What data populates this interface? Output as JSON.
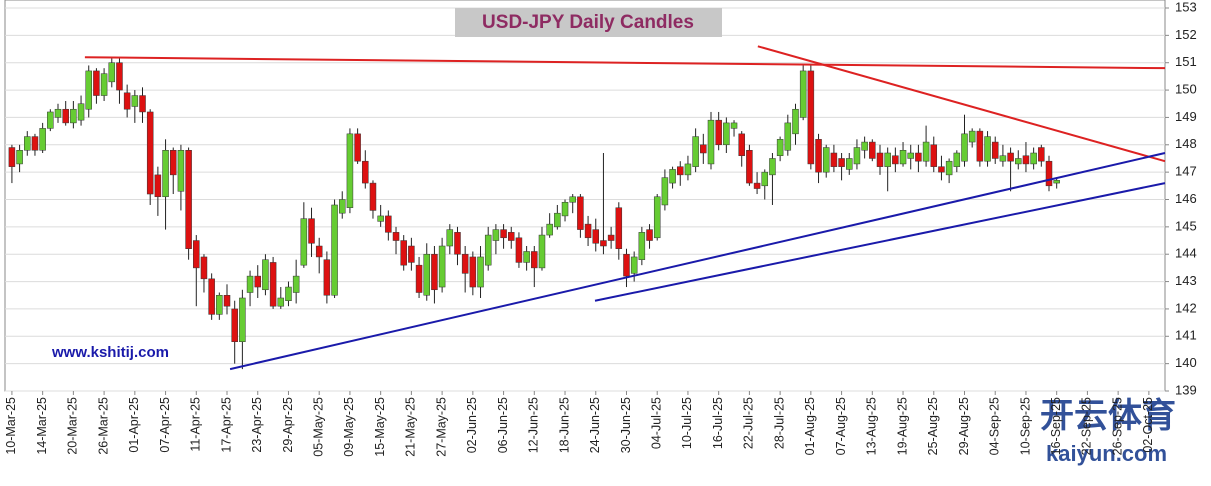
{
  "chart_data": {
    "type": "candlestick",
    "title": "USD-JPY Daily Candles",
    "watermarks": [
      "www.kshitij.com",
      "开云体育",
      "kaiyun.com"
    ],
    "categories": [
      "10-Mar-25",
      null,
      null,
      null,
      "14-Mar-25",
      null,
      null,
      null,
      "20-Mar-25",
      null,
      null,
      null,
      "26-Mar-25",
      null,
      null,
      null,
      "01-Apr-25",
      null,
      null,
      null,
      "07-Apr-25",
      null,
      null,
      null,
      "11-Apr-25",
      null,
      null,
      null,
      "17-Apr-25",
      null,
      null,
      null,
      "23-Apr-25",
      null,
      null,
      null,
      "29-Apr-25",
      null,
      null,
      null,
      "05-May-25",
      null,
      null,
      null,
      "09-May-25",
      null,
      null,
      null,
      "15-May-25",
      null,
      null,
      null,
      "21-May-25",
      null,
      null,
      null,
      "27-May-25",
      null,
      null,
      null,
      "02-Jun-25",
      null,
      null,
      null,
      "06-Jun-25",
      null,
      null,
      null,
      "12-Jun-25",
      null,
      null,
      null,
      "18-Jun-25",
      null,
      null,
      null,
      "24-Jun-25",
      null,
      null,
      null,
      "30-Jun-25",
      null,
      null,
      null,
      "04-Jul-25",
      null,
      null,
      null,
      "10-Jul-25",
      null,
      null,
      null,
      "16-Jul-25",
      null,
      null,
      null,
      "22-Jul-25",
      null,
      null,
      null,
      "28-Jul-25",
      null,
      null,
      null,
      "01-Aug-25",
      null,
      null,
      null,
      "07-Aug-25",
      null,
      null,
      null,
      "13-Aug-25",
      null,
      null,
      null,
      "19-Aug-25",
      null,
      null,
      null,
      "25-Aug-25",
      null,
      null,
      null,
      "29-Aug-25",
      null,
      null,
      null,
      "04-Sep-25",
      null,
      null,
      null,
      "10-Sep-25",
      null,
      null,
      null,
      "16-Sep-25",
      null,
      null,
      null,
      "22-Sep-25",
      null,
      null,
      null,
      "26-Sep-25",
      null,
      null,
      null,
      "02-Oct-25"
    ],
    "candles": {
      "open": [
        147.9,
        147.3,
        147.8,
        148.3,
        147.8,
        148.6,
        149.0,
        149.3,
        148.8,
        148.9,
        149.3,
        150.7,
        149.8,
        150.3,
        151.0,
        149.9,
        149.4,
        149.8,
        149.2,
        146.9,
        146.1,
        147.8,
        146.3,
        147.8,
        144.5,
        143.9,
        143.1,
        141.8,
        142.5,
        142.0,
        140.8,
        142.6,
        143.2,
        142.7,
        143.7,
        142.1,
        142.3,
        142.6,
        143.6,
        145.3,
        144.3,
        143.8,
        142.5,
        145.5,
        145.7,
        148.4,
        147.4,
        146.6,
        145.2,
        145.4,
        144.8,
        144.5,
        144.3,
        143.6,
        142.5,
        144.0,
        142.8,
        144.3,
        144.8,
        144.0,
        143.9,
        142.8,
        143.6,
        144.5,
        144.9,
        144.8,
        144.6,
        143.7,
        144.1,
        143.5,
        144.7,
        145.0,
        145.4,
        145.9,
        146.1,
        145.1,
        144.9,
        144.5,
        144.7,
        145.7,
        144.0,
        143.3,
        143.8,
        144.9,
        144.6,
        145.8,
        146.6,
        147.2,
        146.9,
        147.2,
        148.0,
        147.3,
        148.9,
        148.0,
        148.6,
        148.4,
        147.8,
        146.6,
        146.5,
        146.9,
        147.6,
        147.8,
        148.4,
        149.0,
        150.7,
        148.2,
        147.0,
        147.7,
        147.5,
        147.1,
        147.3,
        147.8,
        148.1,
        147.7,
        147.2,
        147.6,
        147.3,
        147.5,
        147.7,
        147.4,
        148.0,
        147.2,
        146.9,
        147.2,
        147.4,
        148.1,
        148.5,
        147.4,
        148.1,
        147.4,
        147.7,
        147.3,
        147.6,
        147.3,
        147.9,
        147.4,
        146.6,
        null,
        null,
        null,
        null,
        null,
        null,
        null,
        null,
        null,
        null,
        null,
        null
      ],
      "high": [
        148.0,
        148.0,
        148.5,
        148.4,
        148.8,
        149.3,
        149.5,
        149.6,
        149.6,
        149.8,
        150.9,
        150.8,
        150.8,
        151.2,
        151.2,
        150.2,
        150.0,
        150.1,
        149.3,
        147.2,
        148.2,
        147.9,
        148.0,
        147.9,
        144.7,
        144.0,
        143.3,
        142.6,
        142.9,
        142.3,
        142.7,
        143.4,
        143.6,
        144.0,
        143.9,
        142.8,
        143.0,
        143.8,
        145.9,
        145.7,
        144.6,
        144.1,
        146.0,
        146.3,
        148.6,
        148.6,
        147.8,
        146.7,
        145.8,
        145.6,
        145.0,
        144.7,
        144.6,
        143.9,
        144.4,
        144.3,
        144.6,
        145.1,
        145.0,
        144.3,
        144.1,
        144.3,
        145.0,
        145.1,
        145.1,
        145.0,
        144.8,
        144.3,
        144.3,
        145.0,
        145.5,
        145.8,
        146.0,
        146.2,
        146.2,
        145.4,
        145.3,
        147.7,
        145.0,
        145.9,
        144.2,
        144.1,
        145.0,
        145.1,
        146.2,
        147.1,
        147.2,
        147.4,
        147.6,
        148.6,
        148.4,
        149.2,
        149.2,
        149.0,
        148.9,
        148.5,
        148.0,
        147.0,
        147.1,
        147.7,
        148.3,
        149.1,
        149.5,
        150.9,
        150.9,
        148.4,
        148.0,
        148.0,
        147.7,
        147.7,
        148.2,
        148.3,
        148.2,
        148.0,
        147.9,
        147.9,
        148.1,
        148.0,
        148.0,
        148.7,
        148.3,
        147.6,
        147.5,
        147.8,
        149.1,
        148.6,
        148.6,
        148.5,
        148.3,
        148.0,
        147.9,
        147.8,
        148.1,
        147.9,
        148.0,
        147.6,
        146.8,
        null,
        null,
        null,
        null,
        null,
        null,
        null,
        null,
        null,
        null,
        null,
        null
      ],
      "low": [
        146.6,
        147.0,
        147.6,
        147.6,
        147.7,
        148.5,
        148.8,
        148.7,
        148.6,
        148.7,
        149.0,
        149.5,
        149.6,
        150.1,
        149.5,
        149.0,
        148.8,
        148.8,
        145.8,
        145.4,
        144.9,
        146.2,
        145.6,
        143.8,
        142.1,
        142.6,
        141.6,
        141.6,
        141.8,
        140.0,
        139.8,
        142.1,
        142.4,
        142.5,
        142.0,
        142.0,
        142.1,
        142.2,
        143.5,
        143.9,
        143.3,
        142.2,
        142.4,
        145.3,
        145.5,
        147.3,
        146.4,
        145.3,
        145.0,
        144.5,
        144.0,
        143.4,
        143.4,
        142.4,
        142.3,
        142.2,
        142.6,
        144.0,
        143.6,
        142.6,
        142.5,
        142.4,
        143.4,
        144.0,
        144.2,
        144.2,
        143.5,
        143.4,
        142.8,
        143.4,
        144.6,
        144.9,
        145.2,
        145.5,
        144.6,
        144.3,
        144.1,
        144.0,
        144.2,
        143.8,
        142.8,
        143.0,
        143.6,
        144.2,
        144.5,
        145.6,
        146.4,
        146.5,
        146.7,
        147.0,
        147.3,
        147.1,
        147.8,
        147.7,
        148.3,
        147.2,
        146.5,
        146.2,
        146.0,
        145.8,
        147.4,
        147.6,
        148.0,
        148.9,
        147.1,
        146.6,
        146.8,
        147.0,
        146.7,
        146.9,
        147.1,
        147.5,
        147.4,
        146.9,
        146.3,
        147.0,
        147.2,
        147.1,
        147.0,
        147.2,
        147.0,
        146.7,
        146.6,
        147.0,
        147.2,
        147.9,
        147.2,
        147.2,
        147.3,
        147.2,
        146.3,
        147.1,
        147.0,
        147.1,
        147.2,
        146.3,
        146.4,
        null,
        null,
        null,
        null,
        null,
        null,
        null,
        null,
        null,
        null,
        null,
        null
      ],
      "close": [
        147.2,
        147.8,
        148.3,
        147.8,
        148.6,
        149.2,
        149.3,
        148.8,
        149.3,
        149.5,
        150.7,
        149.8,
        150.6,
        151.0,
        150.0,
        149.3,
        149.8,
        149.2,
        146.2,
        146.1,
        147.8,
        146.9,
        147.8,
        144.2,
        143.5,
        143.1,
        141.8,
        142.5,
        142.1,
        140.8,
        142.4,
        143.2,
        142.8,
        143.8,
        142.1,
        142.4,
        142.8,
        143.2,
        145.3,
        144.4,
        143.9,
        142.5,
        145.8,
        146.0,
        148.4,
        147.4,
        146.6,
        145.6,
        145.4,
        144.8,
        144.5,
        143.6,
        143.7,
        142.6,
        144.0,
        142.7,
        144.3,
        144.9,
        144.0,
        143.3,
        142.8,
        143.9,
        144.7,
        144.9,
        144.6,
        144.5,
        143.7,
        144.1,
        143.5,
        144.7,
        145.1,
        145.5,
        145.9,
        146.1,
        144.9,
        144.6,
        144.4,
        144.3,
        144.5,
        144.2,
        143.2,
        143.9,
        144.8,
        144.5,
        146.1,
        146.8,
        147.1,
        146.9,
        147.3,
        148.3,
        147.7,
        148.9,
        148.0,
        148.8,
        148.8,
        147.6,
        146.6,
        146.4,
        147.0,
        147.5,
        148.2,
        148.8,
        149.3,
        150.7,
        147.3,
        147.0,
        147.9,
        147.2,
        147.2,
        147.5,
        147.9,
        148.1,
        147.5,
        147.2,
        147.7,
        147.3,
        147.8,
        147.7,
        147.4,
        148.1,
        147.2,
        147.0,
        147.4,
        147.7,
        148.4,
        148.5,
        147.4,
        148.3,
        147.5,
        147.6,
        147.4,
        147.5,
        147.3,
        147.7,
        147.4,
        146.5,
        146.7,
        null,
        null,
        null,
        null,
        null,
        null,
        null,
        null,
        null,
        null,
        null,
        null
      ]
    },
    "up_color": "#66cc33",
    "down_color": "#dd1111",
    "trendlines": [
      {
        "color": "#dd2222",
        "x": [
          9.5,
          150.1
        ],
        "y": [
          151.2,
          150.8
        ]
      },
      {
        "color": "#dd2222",
        "x": [
          97.1,
          150.1
        ],
        "y": [
          151.6,
          147.4
        ]
      },
      {
        "color": "#1a1aaa",
        "x": [
          28.4,
          150.1
        ],
        "y": [
          139.8,
          147.7
        ]
      },
      {
        "color": "#1a1aaa",
        "x": [
          75.9,
          150.1
        ],
        "y": [
          142.3,
          146.6
        ]
      }
    ],
    "xlim": [
      -0.9,
      150.1
    ],
    "ylim": [
      139,
      153
    ],
    "yticks": [
      139,
      140,
      141,
      142,
      143,
      144,
      145,
      146,
      147,
      148,
      149,
      150,
      151,
      152,
      153
    ],
    "grid": true
  }
}
